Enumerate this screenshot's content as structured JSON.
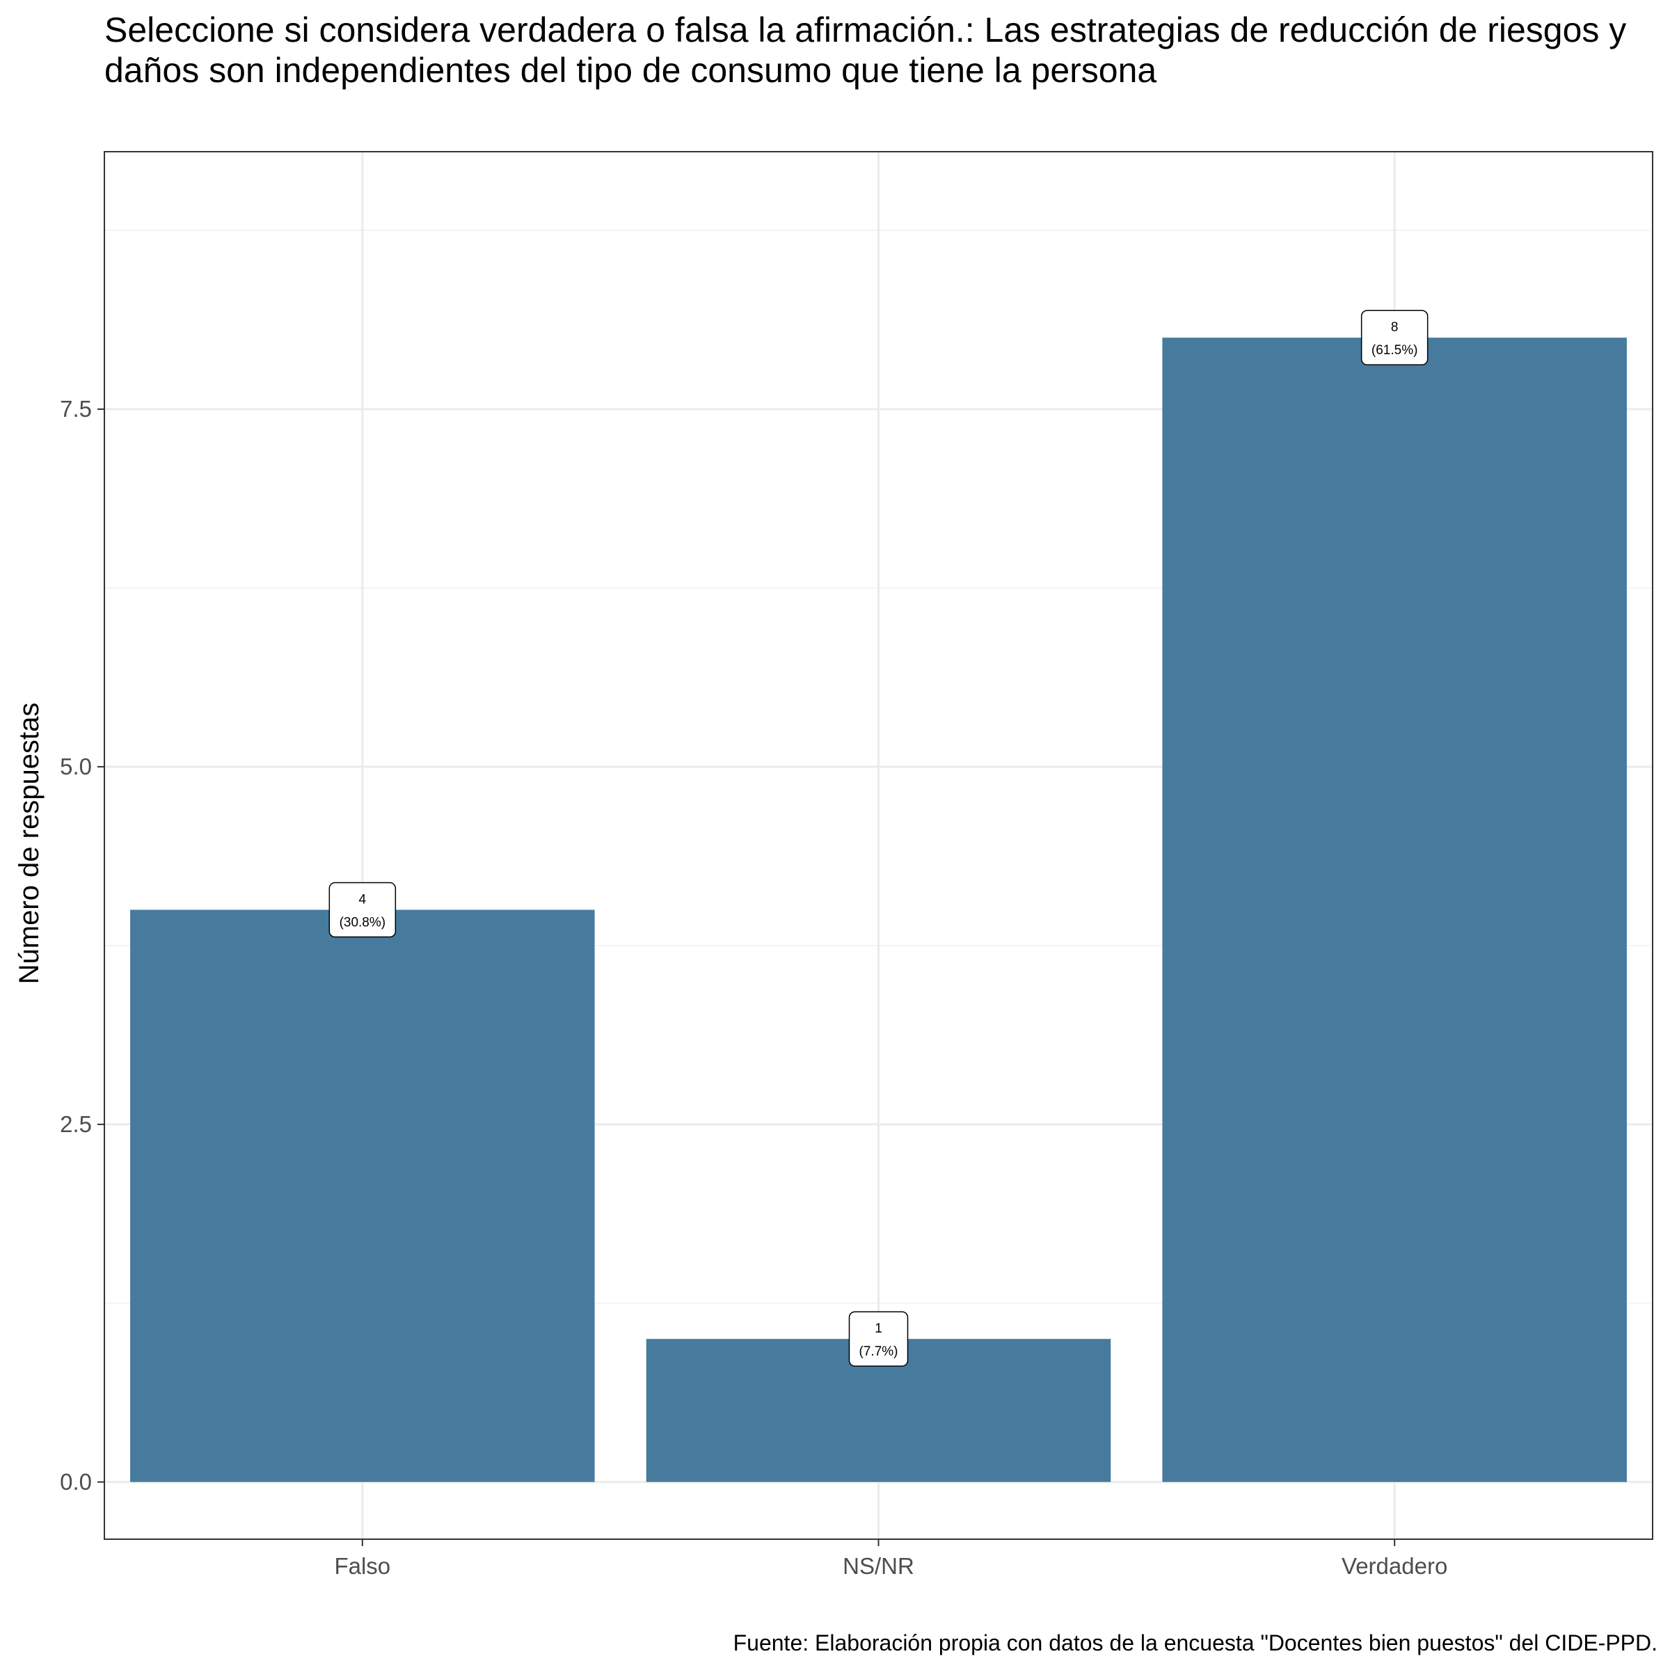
{
  "chart_data": {
    "type": "bar",
    "title": "Seleccione si considera verdadera o falsa la afirmación.: Las estrategias de reducción de riesgos y daños son independientes del tipo de consumo que tiene la persona",
    "xlabel": "",
    "ylabel": "Número de respuestas",
    "categories": [
      "Falso",
      "NS/NR",
      "Verdadero"
    ],
    "values": [
      4,
      1,
      8
    ],
    "data_labels": [
      {
        "count": "4",
        "percent": "(30.8%)"
      },
      {
        "count": "1",
        "percent": "(7.7%)"
      },
      {
        "count": "8",
        "percent": "(61.5%)"
      }
    ],
    "ylim": [
      -0.4,
      9.3
    ],
    "y_ticks": [
      0,
      2.5,
      5,
      7.5
    ],
    "y_tick_labels": [
      "0.0",
      "2.5",
      "5.0",
      "7.5"
    ],
    "bar_color": "#467b9d",
    "grid": true,
    "caption": "Fuente: Elaboración propia con datos de la encuesta \"Docentes bien puestos\" del CIDE-PPD."
  }
}
